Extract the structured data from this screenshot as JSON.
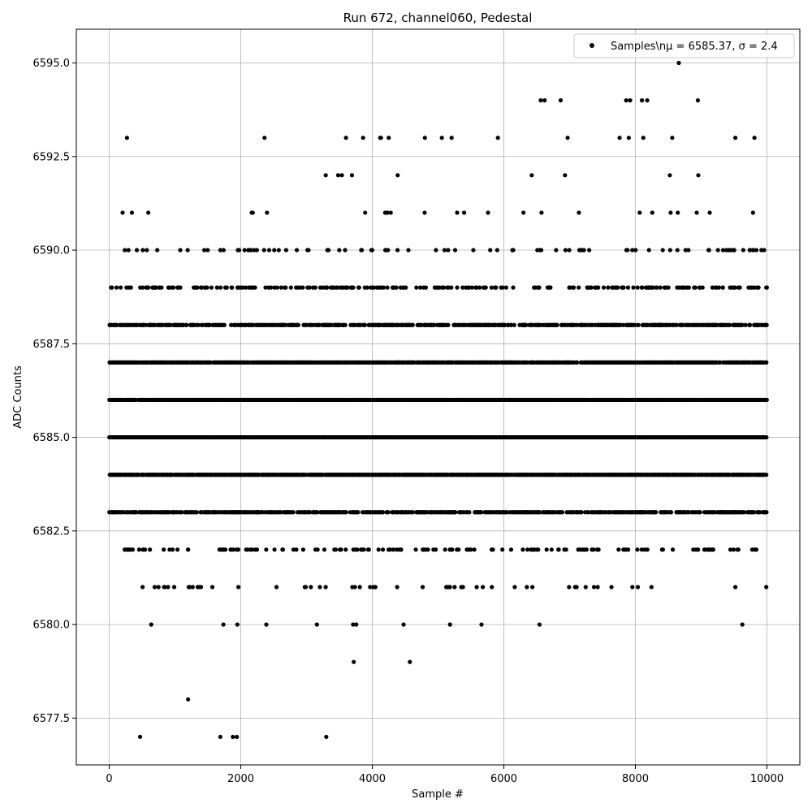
{
  "chart_data": {
    "type": "scatter",
    "title": "Run 672, channel060, Pedestal",
    "xlabel": "Sample #",
    "ylabel": "ADC Counts",
    "xlim": [
      -500,
      10500
    ],
    "ylim": [
      6576.25,
      6595.9
    ],
    "x_ticks": [
      0,
      2000,
      4000,
      6000,
      8000,
      10000
    ],
    "x_tick_labels": [
      "0",
      "2000",
      "4000",
      "6000",
      "8000",
      "10000"
    ],
    "y_ticks": [
      6577.5,
      6580.0,
      6582.5,
      6585.0,
      6587.5,
      6590.0,
      6592.5,
      6595.0
    ],
    "y_tick_labels": [
      "6577.5",
      "6580.0",
      "6582.5",
      "6585.0",
      "6587.5",
      "6590.0",
      "6592.5",
      "6595.0"
    ],
    "grid": true,
    "legend_position": "top-right",
    "series": [
      {
        "name": "Samples\\nμ = 6585.37, σ = 2.4",
        "color": "#000000",
        "marker": "circle",
        "n_samples": 10000,
        "x_range": [
          0,
          9999
        ],
        "mean": 6585.37,
        "sigma": 2.4,
        "level_density": [
          {
            "y": 6577,
            "density": 0.0007,
            "range": [
              0,
              3500
            ]
          },
          {
            "y": 6578,
            "density": 0.0014,
            "range": [
              0,
              6000
            ]
          },
          {
            "y": 6579,
            "density": 0.003,
            "range": [
              300,
              7600
            ]
          },
          {
            "y": 6580,
            "density": 0.012,
            "range": [
              100,
              9800
            ]
          },
          {
            "y": 6581,
            "density": 0.05,
            "range": [
              0,
              10000
            ]
          },
          {
            "y": 6582,
            "density": 0.15,
            "range": [
              0,
              9900
            ]
          },
          {
            "y": 6583,
            "density": 0.55,
            "range": [
              0,
              10000
            ]
          },
          {
            "y": 6584,
            "density": 0.9,
            "range": [
              0,
              10000
            ]
          },
          {
            "y": 6585,
            "density": 1.0,
            "range": [
              0,
              10000
            ]
          },
          {
            "y": 6586,
            "density": 0.95,
            "range": [
              0,
              10000
            ]
          },
          {
            "y": 6587,
            "density": 0.8,
            "range": [
              0,
              10000
            ]
          },
          {
            "y": 6588,
            "density": 0.5,
            "range": [
              0,
              10000
            ]
          },
          {
            "y": 6589,
            "density": 0.2,
            "range": [
              0,
              10000
            ]
          },
          {
            "y": 6590,
            "density": 0.1,
            "range": [
              0,
              10000
            ]
          },
          {
            "y": 6591,
            "density": 0.02,
            "range": [
              150,
              9800
            ]
          },
          {
            "y": 6592,
            "density": 0.01,
            "range": [
              900,
              10000
            ]
          },
          {
            "y": 6593,
            "density": 0.002,
            "range": [
              250,
              9800
            ]
          },
          {
            "y": 6594,
            "density": 0.0007,
            "range": [
              6500,
              9000
            ]
          },
          {
            "y": 6595,
            "density": 0.0001,
            "range": [
              8600,
              8700
            ]
          }
        ],
        "highlighted_points": [
          {
            "x": 270,
            "y": 6593
          },
          {
            "x": 3600,
            "y": 6593
          },
          {
            "x": 3860,
            "y": 6593
          },
          {
            "x": 4120,
            "y": 6593
          },
          {
            "x": 4250,
            "y": 6593
          },
          {
            "x": 4800,
            "y": 6593
          },
          {
            "x": 6970,
            "y": 6593
          },
          {
            "x": 7760,
            "y": 6593
          },
          {
            "x": 7900,
            "y": 6593
          },
          {
            "x": 8120,
            "y": 6593
          },
          {
            "x": 8560,
            "y": 6593
          },
          {
            "x": 9520,
            "y": 6593
          },
          {
            "x": 9810,
            "y": 6593
          },
          {
            "x": 6560,
            "y": 6594
          },
          {
            "x": 6620,
            "y": 6594
          },
          {
            "x": 7860,
            "y": 6594
          },
          {
            "x": 7920,
            "y": 6594
          },
          {
            "x": 8100,
            "y": 6594
          },
          {
            "x": 8180,
            "y": 6594
          },
          {
            "x": 8950,
            "y": 6594
          },
          {
            "x": 8660,
            "y": 6595
          },
          {
            "x": 470,
            "y": 6577
          },
          {
            "x": 1690,
            "y": 6577
          },
          {
            "x": 1880,
            "y": 6577
          },
          {
            "x": 1940,
            "y": 6577
          },
          {
            "x": 3300,
            "y": 6577
          }
        ]
      }
    ]
  }
}
